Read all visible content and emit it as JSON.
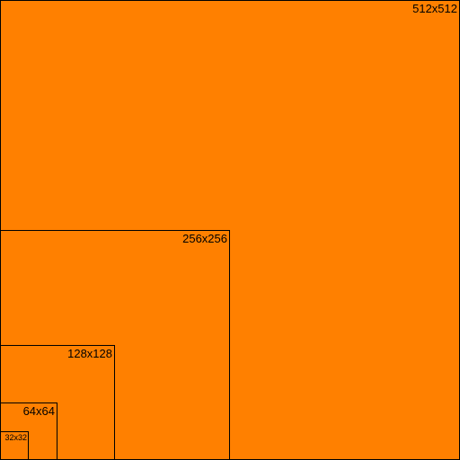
{
  "colors": {
    "fill": "#ff8000",
    "border": "#000000",
    "text": "#000000"
  },
  "squares": [
    {
      "label": "512x512"
    },
    {
      "label": "256x256"
    },
    {
      "label": "128x128"
    },
    {
      "label": "64x64"
    },
    {
      "label": "32x32"
    }
  ]
}
